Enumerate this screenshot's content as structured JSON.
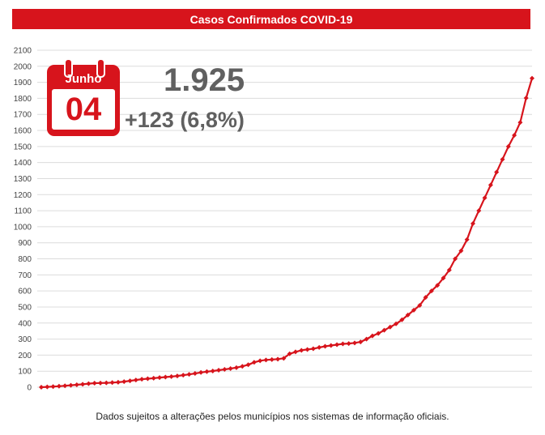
{
  "title": "Casos Confirmados COVID-19",
  "calendar": {
    "month": "Junho",
    "day": "04"
  },
  "total": "1.925",
  "delta": "+123 (6,8%)",
  "footnote": "Dados sujeitos a alterações pelos municípios nos sistemas de informação oficiais.",
  "colors": {
    "accent": "#d7141c",
    "headline": "#606060"
  },
  "chart_data": {
    "type": "line",
    "title": "Casos Confirmados COVID-19",
    "ylim": [
      0,
      2100
    ],
    "yticks": [
      "0",
      "100",
      "200",
      "300",
      "400",
      "500",
      "600",
      "700",
      "800",
      "900",
      "1000",
      "1100",
      "1200",
      "1300",
      "1400",
      "1500",
      "1600",
      "1700",
      "1800",
      "1900",
      "2000",
      "2100"
    ],
    "grid": true,
    "series": [
      {
        "values": [
          0,
          2,
          4,
          6,
          9,
          12,
          15,
          18,
          22,
          25,
          26,
          27,
          29,
          31,
          35,
          40,
          45,
          50,
          53,
          56,
          60,
          63,
          66,
          70,
          75,
          80,
          86,
          92,
          97,
          101,
          106,
          111,
          116,
          122,
          130,
          140,
          155,
          165,
          170,
          172,
          175,
          180,
          208,
          220,
          230,
          235,
          240,
          248,
          255,
          260,
          265,
          270,
          272,
          276,
          282,
          300,
          320,
          335,
          355,
          375,
          395,
          420,
          450,
          480,
          510,
          560,
          600,
          635,
          680,
          730,
          800,
          850,
          920,
          1020,
          1100,
          1180,
          1260,
          1340,
          1420,
          1500,
          1570,
          1650,
          1802,
          1925
        ]
      }
    ]
  }
}
